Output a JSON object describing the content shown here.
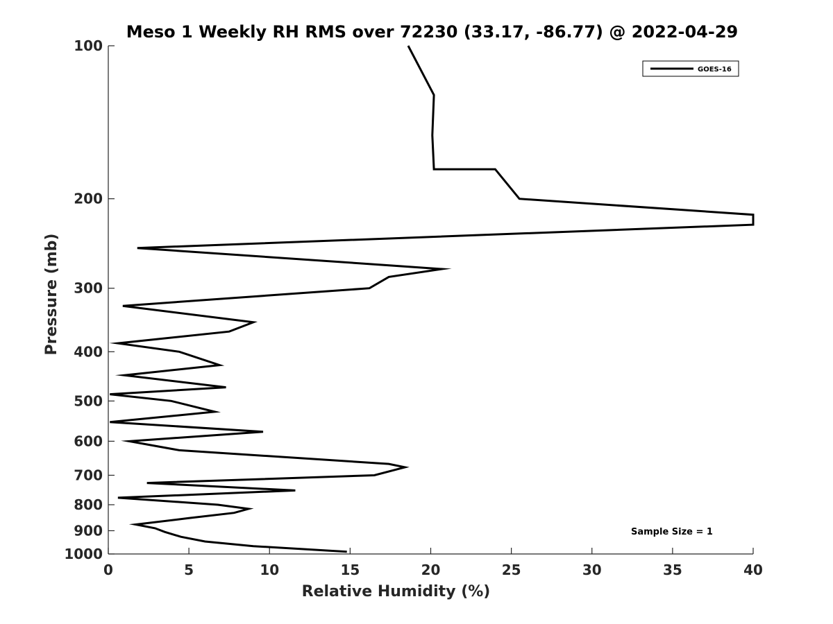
{
  "chart_data": {
    "type": "line",
    "title": "Meso 1 Weekly RH RMS over 72230 (33.17, -86.77) @ 2022-04-29",
    "xlabel": "Relative Humidity (%)",
    "ylabel": "Pressure (mb)",
    "xlim": [
      0,
      40
    ],
    "ylim": [
      100,
      1000
    ],
    "y_scale": "log",
    "y_reversed": true,
    "x_ticks": [
      "0",
      "5",
      "10",
      "15",
      "20",
      "25",
      "30",
      "35",
      "40"
    ],
    "y_ticks": [
      "100",
      "200",
      "300",
      "400",
      "500",
      "600",
      "700",
      "800",
      "900",
      "1000"
    ],
    "grid": false,
    "legend": {
      "position": "top-right",
      "entries": [
        "GOES-16"
      ]
    },
    "annotation": "Sample Size = 1",
    "line_color": "#000000",
    "series": [
      {
        "name": "GOES-16",
        "x": [
          18.6,
          20.2,
          20.1,
          20.2,
          22.1,
          24.0,
          25.5,
          40.0,
          40.0,
          1.8,
          20.7,
          17.4,
          16.2,
          0.9,
          9.0,
          7.5,
          0.6,
          4.4,
          6.9,
          1.0,
          7.3,
          0.1,
          3.9,
          6.6,
          0.1,
          9.6,
          1.3,
          4.4,
          17.4,
          18.4,
          16.5,
          2.4,
          11.6,
          0.6,
          6.8,
          8.7,
          7.8,
          5.0,
          1.7,
          2.9,
          3.5,
          4.5,
          6.0,
          9.0,
          14.8
        ],
        "y": [
          100,
          125,
          150,
          175,
          175,
          175,
          200,
          215,
          225,
          250,
          275,
          285,
          300,
          325,
          350,
          365,
          385,
          400,
          425,
          445,
          470,
          485,
          500,
          525,
          550,
          575,
          600,
          625,
          665,
          675,
          700,
          725,
          750,
          775,
          800,
          815,
          830,
          850,
          875,
          890,
          905,
          925,
          945,
          965,
          990
        ]
      }
    ]
  }
}
